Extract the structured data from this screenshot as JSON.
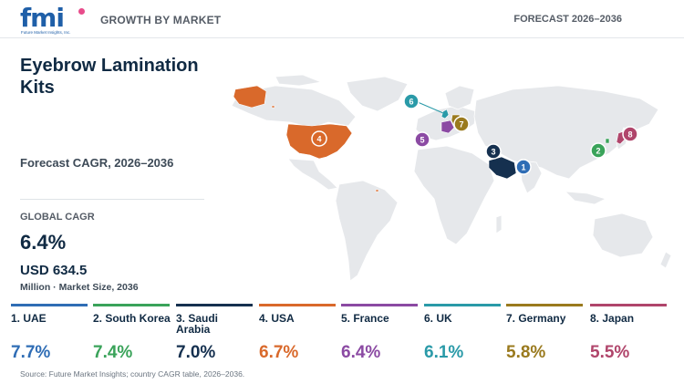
{
  "header": {
    "logo_text": "fmi",
    "logo_subtitle": "Future Market Insights, Inc.",
    "section_label": "GROWTH BY MARKET",
    "forecast_label": "FORECAST 2026–2036"
  },
  "summary": {
    "title": "Eyebrow Lamination Kits",
    "cagr_period": "Forecast CAGR, 2026–2036",
    "global_cagr_label": "GLOBAL CAGR",
    "global_cagr_value": "6.4%",
    "market_size_value": "USD 634.5",
    "market_size_unit": "Million · Market Size, 2036"
  },
  "countries": [
    {
      "rank": "1",
      "label": "1. UAE",
      "cagr": "7.7%",
      "color": "#2f6db5"
    },
    {
      "rank": "2",
      "label": "2. South Korea",
      "cagr": "7.4%",
      "color": "#3aa35a"
    },
    {
      "rank": "3",
      "label": "3. Saudi Arabia",
      "cagr": "7.0%",
      "color": "#15304f"
    },
    {
      "rank": "4",
      "label": "4. USA",
      "cagr": "6.7%",
      "color": "#d9692b"
    },
    {
      "rank": "5",
      "label": "5. France",
      "cagr": "6.4%",
      "color": "#8b4aa3"
    },
    {
      "rank": "6",
      "label": "6. UK",
      "cagr": "6.1%",
      "color": "#2a9aa8"
    },
    {
      "rank": "7",
      "label": "7. Germany",
      "cagr": "5.8%",
      "color": "#9a7a1e"
    },
    {
      "rank": "8",
      "label": "8. Japan",
      "cagr": "5.5%",
      "color": "#b0456b"
    }
  ],
  "map_colors": {
    "land": "#e6e8eb",
    "land_stroke": "#ffffff"
  },
  "source": "Source: Future Market Insights; country CAGR table, 2026–2036."
}
